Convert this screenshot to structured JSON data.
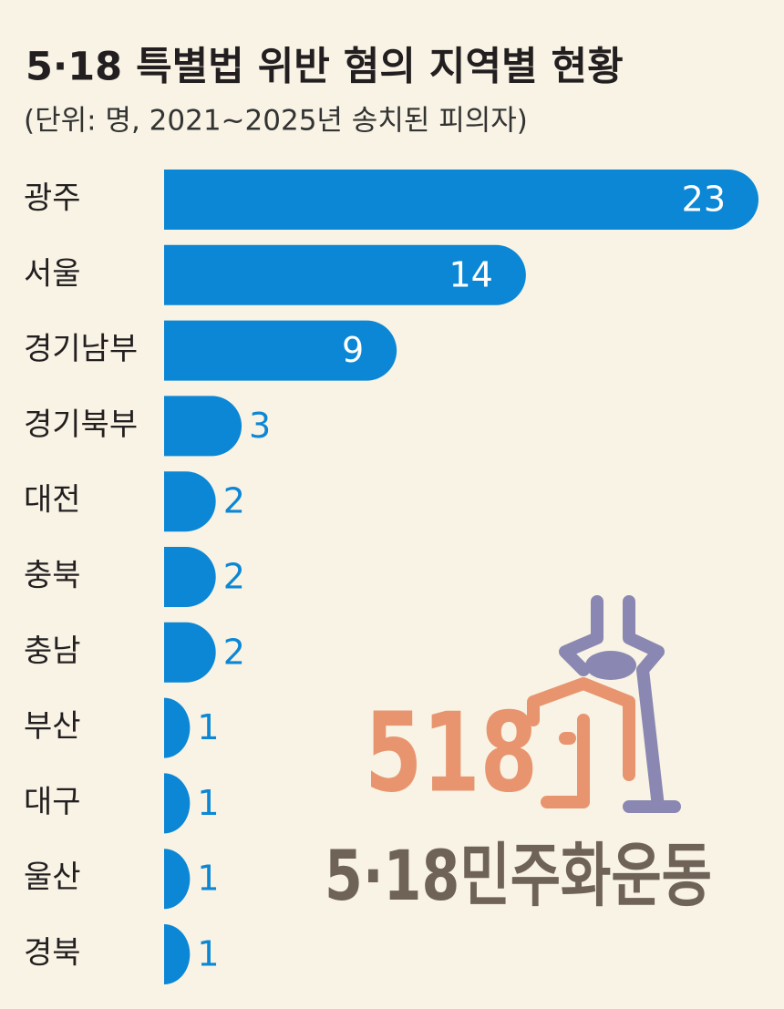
{
  "chart_data": {
    "type": "hbar",
    "title": "5·18 특별법 위반 혐의 지역별 현황",
    "subtitle": "(단위: 명, 2021~2025년 송치된 피의자)",
    "categories": [
      "광주",
      "서울",
      "경기남부",
      "경기북부",
      "대전",
      "충북",
      "충남",
      "부산",
      "대구",
      "울산",
      "경북"
    ],
    "values": [
      23,
      14,
      9,
      3,
      2,
      2,
      2,
      1,
      1,
      1,
      1
    ],
    "color": "#0b87d6",
    "xlim": [
      0,
      23
    ],
    "annotations": [
      "518",
      "5·18민주화운동"
    ]
  }
}
